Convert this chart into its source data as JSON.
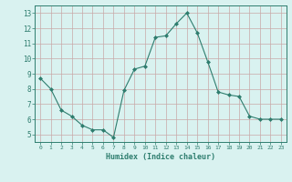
{
  "x": [
    0,
    1,
    2,
    3,
    4,
    5,
    6,
    7,
    8,
    9,
    10,
    11,
    12,
    13,
    14,
    15,
    16,
    17,
    18,
    19,
    20,
    21,
    22,
    23
  ],
  "y": [
    8.7,
    8.0,
    6.6,
    6.2,
    5.6,
    5.3,
    5.3,
    4.8,
    7.9,
    9.3,
    9.5,
    11.4,
    11.5,
    12.3,
    13.0,
    11.7,
    9.8,
    7.8,
    7.6,
    7.5,
    6.2,
    6.0,
    6.0,
    6.0
  ],
  "line_color": "#2e7d6e",
  "marker": "D",
  "marker_size": 2,
  "bg_color": "#d9f2f0",
  "grid_color": "#c8a8a8",
  "xlabel": "Humidex (Indice chaleur)",
  "tick_color": "#2e7d6e",
  "ylim": [
    4.5,
    13.5
  ],
  "yticks": [
    5,
    6,
    7,
    8,
    9,
    10,
    11,
    12,
    13
  ],
  "xlim": [
    -0.5,
    23.5
  ],
  "xticks": [
    0,
    1,
    2,
    3,
    4,
    5,
    6,
    7,
    8,
    9,
    10,
    11,
    12,
    13,
    14,
    15,
    16,
    17,
    18,
    19,
    20,
    21,
    22,
    23
  ]
}
